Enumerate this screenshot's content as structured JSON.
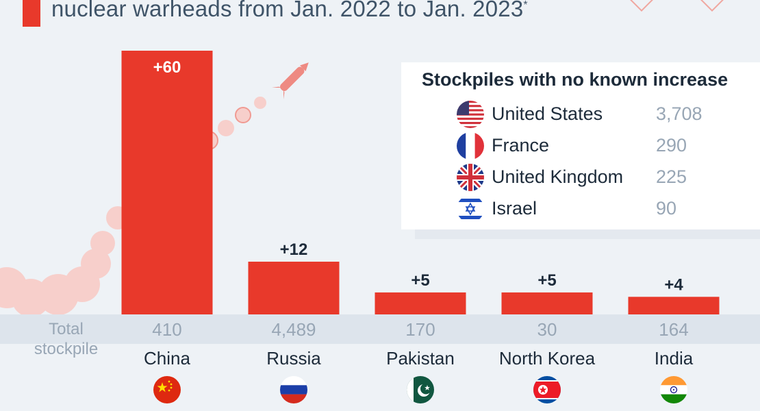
{
  "title": {
    "line": "nuclear warheads from Jan. 2022 to Jan. 2023",
    "footnote_mark": "*",
    "accent_color": "#e8392b"
  },
  "chart_data": {
    "type": "bar",
    "categories": [
      "China",
      "Russia",
      "Pakistan",
      "North Korea",
      "India"
    ],
    "values": [
      60,
      12,
      5,
      5,
      4
    ],
    "value_labels": [
      "+60",
      "+12",
      "+5",
      "+5",
      "+4"
    ],
    "ylim": [
      0,
      60
    ],
    "bar_color": "#e8392b",
    "grid": false,
    "total_stockpile_label": "Total stockpile",
    "total_stockpile": [
      "410",
      "4,489",
      "170",
      "30",
      "164"
    ]
  },
  "flags": [
    "china-flag-icon",
    "russia-flag-icon",
    "pakistan-flag-icon",
    "north-korea-flag-icon",
    "india-flag-icon"
  ],
  "legend": {
    "title": "Stockpiles with no known increase",
    "items": [
      {
        "name": "United States",
        "value": "3,708",
        "flag": "usa-flag-icon"
      },
      {
        "name": "France",
        "value": "290",
        "flag": "france-flag-icon"
      },
      {
        "name": "United Kingdom",
        "value": "225",
        "flag": "uk-flag-icon"
      },
      {
        "name": "Israel",
        "value": "90",
        "flag": "israel-flag-icon"
      }
    ]
  }
}
